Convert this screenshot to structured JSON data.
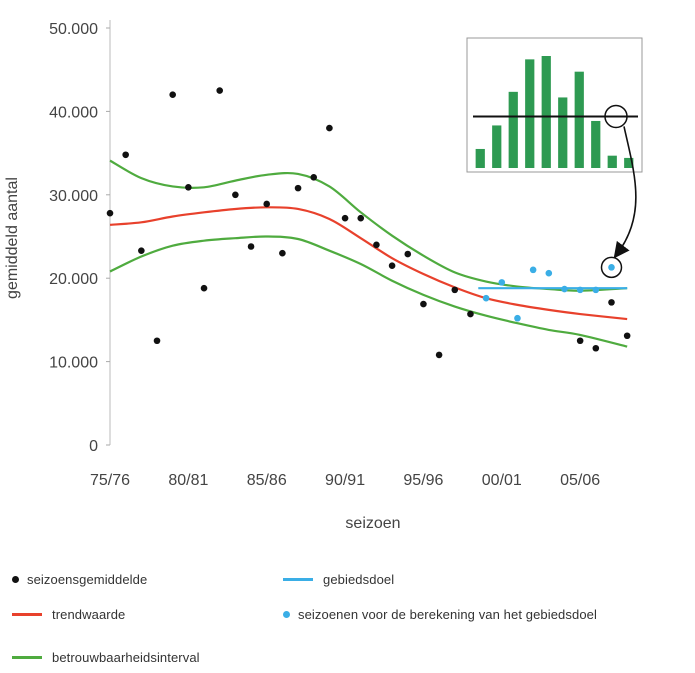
{
  "chart_data": {
    "type": "scatter",
    "ylabel": "gemiddeld aantal",
    "xlabel": "seizoen",
    "ylim": [
      0,
      50000
    ],
    "y_ticks": [
      0,
      10000,
      20000,
      30000,
      40000,
      50000
    ],
    "y_tick_labels": [
      "0",
      "10.000",
      "20.000",
      "30.000",
      "40.000",
      "50.000"
    ],
    "xlim": [
      1975,
      2008.5
    ],
    "x_ticks": [
      1975,
      1980,
      1985,
      1990,
      1995,
      2000,
      2005
    ],
    "x_tick_labels": [
      "75/76",
      "80/81",
      "85/86",
      "90/91",
      "95/96",
      "00/01",
      "05/06"
    ],
    "series": [
      {
        "name": "seizoensgemiddelde",
        "kind": "points",
        "color": "#111111",
        "points": [
          [
            1975,
            27800
          ],
          [
            1976,
            34800
          ],
          [
            1977,
            23300
          ],
          [
            1978,
            12500
          ],
          [
            1979,
            42000
          ],
          [
            1980,
            30900
          ],
          [
            1981,
            18800
          ],
          [
            1982,
            42500
          ],
          [
            1983,
            30000
          ],
          [
            1984,
            23800
          ],
          [
            1985,
            28900
          ],
          [
            1986,
            23000
          ],
          [
            1987,
            30800
          ],
          [
            1988,
            32100
          ],
          [
            1989,
            38000
          ],
          [
            1990,
            27200
          ],
          [
            1991,
            27200
          ],
          [
            1992,
            24000
          ],
          [
            1993,
            21500
          ],
          [
            1994,
            22900
          ],
          [
            1995,
            16900
          ],
          [
            1996,
            10800
          ],
          [
            1997,
            18600
          ],
          [
            1998,
            15700
          ],
          [
            2005,
            12500
          ],
          [
            2006,
            11600
          ],
          [
            2007,
            17100
          ],
          [
            2008,
            13100
          ]
        ]
      },
      {
        "name": "seizoenen voor de berekening van het gebiedsdoel",
        "kind": "points",
        "color": "#3aaee6",
        "points": [
          [
            1999,
            17600
          ],
          [
            2000,
            19500
          ],
          [
            2001,
            15200
          ],
          [
            2002,
            21000
          ],
          [
            2003,
            20600
          ],
          [
            2004,
            18700
          ],
          [
            2005,
            18600
          ],
          [
            2006,
            18600
          ],
          [
            2007,
            21300
          ]
        ]
      },
      {
        "name": "trendwaarde",
        "kind": "line",
        "color": "#e8412c",
        "points": [
          [
            1975,
            26400
          ],
          [
            1977,
            26700
          ],
          [
            1979,
            27400
          ],
          [
            1981,
            27900
          ],
          [
            1983,
            28300
          ],
          [
            1985,
            28500
          ],
          [
            1987,
            28300
          ],
          [
            1989,
            27100
          ],
          [
            1991,
            24800
          ],
          [
            1993,
            22400
          ],
          [
            1995,
            20500
          ],
          [
            1997,
            18900
          ],
          [
            1999,
            17600
          ],
          [
            2001,
            16800
          ],
          [
            2003,
            16200
          ],
          [
            2005,
            15700
          ],
          [
            2008,
            15100
          ]
        ]
      },
      {
        "name": "betrouwbaarheidsinterval",
        "kind": "line",
        "color": "#4fab3f",
        "points": [
          [
            1975,
            34100
          ],
          [
            1977,
            32000
          ],
          [
            1979,
            31000
          ],
          [
            1981,
            30900
          ],
          [
            1983,
            31700
          ],
          [
            1985,
            32400
          ],
          [
            1987,
            32500
          ],
          [
            1989,
            31000
          ],
          [
            1991,
            27900
          ],
          [
            1993,
            25100
          ],
          [
            1995,
            22700
          ],
          [
            1997,
            20700
          ],
          [
            1999,
            19600
          ],
          [
            2001,
            19000
          ],
          [
            2003,
            18700
          ],
          [
            2005,
            18500
          ],
          [
            2008,
            18800
          ]
        ]
      },
      {
        "name": "betrouwbaarheidsinterval-lower",
        "kind": "line",
        "color": "#4fab3f",
        "points": [
          [
            1975,
            20800
          ],
          [
            1977,
            22600
          ],
          [
            1979,
            23900
          ],
          [
            1981,
            24500
          ],
          [
            1983,
            24800
          ],
          [
            1985,
            25000
          ],
          [
            1987,
            24700
          ],
          [
            1989,
            23300
          ],
          [
            1991,
            21700
          ],
          [
            1993,
            19700
          ],
          [
            1995,
            18000
          ],
          [
            1997,
            16600
          ],
          [
            1999,
            15500
          ],
          [
            2001,
            14600
          ],
          [
            2003,
            13800
          ],
          [
            2005,
            13200
          ],
          [
            2008,
            11800
          ]
        ]
      },
      {
        "name": "gebiedsdoel",
        "kind": "line",
        "color": "#3aaee6",
        "points": [
          [
            1998.5,
            18800
          ],
          [
            2008,
            18800
          ]
        ]
      }
    ],
    "inset": {
      "type": "bar",
      "color": "#2e9a52",
      "values": [
        0.17,
        0.38,
        0.68,
        0.97,
        1.0,
        0.63,
        0.86,
        0.42,
        0.11,
        0.09
      ],
      "reference_line": 0.46
    },
    "legend": [
      {
        "symbol": "dot",
        "color": "#111111",
        "label": "seizoensgemiddelde"
      },
      {
        "symbol": "line",
        "color": "#e8412c",
        "label": "trendwaarde"
      },
      {
        "symbol": "line",
        "color": "#4fab3f",
        "label": "betrouwbaarheidsinterval"
      },
      {
        "symbol": "line",
        "color": "#3aaee6",
        "label": "gebiedsdoel"
      },
      {
        "symbol": "dot",
        "color": "#3aaee6",
        "label": "seizoenen voor de berekening van het gebiedsdoel"
      }
    ]
  }
}
